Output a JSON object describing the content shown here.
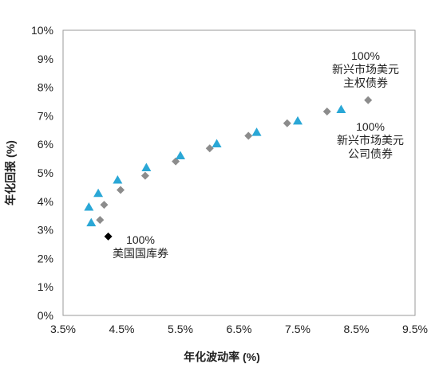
{
  "chart_data": {
    "type": "scatter",
    "title": "",
    "xlabel": "年化波动率 (%)",
    "ylabel": "年化回报 (%)",
    "xlim": [
      3.5,
      9.5
    ],
    "ylim": [
      0,
      10
    ],
    "x_ticks": [
      {
        "value": 3.5,
        "label": "3.5%"
      },
      {
        "value": 4.5,
        "label": "4.5%"
      },
      {
        "value": 5.5,
        "label": "5.5%"
      },
      {
        "value": 6.5,
        "label": "6.5%"
      },
      {
        "value": 7.5,
        "label": "7.5%"
      },
      {
        "value": 8.5,
        "label": "8.5%"
      },
      {
        "value": 9.5,
        "label": "9.5%"
      }
    ],
    "y_ticks": [
      {
        "value": 0,
        "label": "0%"
      },
      {
        "value": 1,
        "label": "1%"
      },
      {
        "value": 2,
        "label": "2%"
      },
      {
        "value": 3,
        "label": "3%"
      },
      {
        "value": 4,
        "label": "4%"
      },
      {
        "value": 5,
        "label": "5%"
      },
      {
        "value": 6,
        "label": "6%"
      },
      {
        "value": 7,
        "label": "7%"
      },
      {
        "value": 8,
        "label": "8%"
      },
      {
        "value": 9,
        "label": "9%"
      },
      {
        "value": 10,
        "label": "10%"
      }
    ],
    "grid": false,
    "legend": "none",
    "series": [
      {
        "marker": "diamond",
        "color": "#8c8c8c",
        "points": [
          {
            "x": 4.13,
            "y": 3.35
          },
          {
            "x": 4.2,
            "y": 3.88
          },
          {
            "x": 4.48,
            "y": 4.4
          },
          {
            "x": 4.9,
            "y": 4.9
          },
          {
            "x": 5.42,
            "y": 5.4
          },
          {
            "x": 6.0,
            "y": 5.86
          },
          {
            "x": 6.66,
            "y": 6.3
          },
          {
            "x": 7.32,
            "y": 6.74
          },
          {
            "x": 8.0,
            "y": 7.15
          },
          {
            "x": 8.7,
            "y": 7.55
          }
        ]
      },
      {
        "marker": "triangle",
        "color": "#2aa7d6",
        "points": [
          {
            "x": 3.98,
            "y": 3.25
          },
          {
            "x": 3.94,
            "y": 3.8
          },
          {
            "x": 4.1,
            "y": 4.28
          },
          {
            "x": 4.43,
            "y": 4.75
          },
          {
            "x": 4.92,
            "y": 5.18
          },
          {
            "x": 5.5,
            "y": 5.6
          },
          {
            "x": 6.12,
            "y": 6.02
          },
          {
            "x": 6.8,
            "y": 6.42
          },
          {
            "x": 7.5,
            "y": 6.82
          },
          {
            "x": 8.24,
            "y": 7.22
          }
        ]
      },
      {
        "marker": "diamond",
        "color": "#000000",
        "points": [
          {
            "x": 4.27,
            "y": 2.77
          }
        ]
      }
    ],
    "annotations": [
      {
        "id": "sovereign",
        "lines": [
          "100%",
          "新兴市场美元",
          "主权债券"
        ]
      },
      {
        "id": "corporate",
        "lines": [
          "100%",
          "新兴市场美元",
          "公司债券"
        ]
      },
      {
        "id": "treasury",
        "lines": [
          "100%",
          "美国国库券"
        ]
      }
    ]
  }
}
